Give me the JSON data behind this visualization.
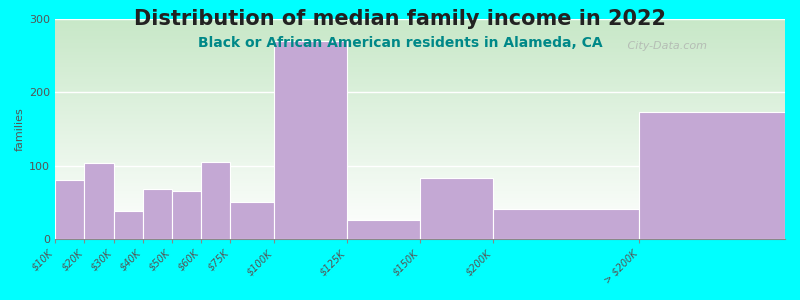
{
  "title": "Distribution of median family income in 2022",
  "subtitle": "Black or African American residents in Alameda, CA",
  "ylabel": "families",
  "background_color": "#00FFFF",
  "bar_color": "#C4A8D4",
  "categories": [
    "$10K",
    "$20K",
    "$30K",
    "$40K",
    "$50K",
    "$60K",
    "$75K",
    "$100K",
    "$125K",
    "$150K",
    "$200K",
    "> $200K"
  ],
  "values": [
    80,
    103,
    38,
    68,
    65,
    105,
    50,
    270,
    25,
    83,
    40,
    173
  ],
  "edges": [
    0,
    10,
    20,
    30,
    40,
    50,
    60,
    75,
    100,
    125,
    150,
    200,
    250
  ],
  "ylim": [
    0,
    300
  ],
  "yticks": [
    0,
    100,
    200,
    300
  ],
  "watermark": " City-Data.com",
  "title_fontsize": 15,
  "subtitle_fontsize": 10,
  "ylabel_fontsize": 8,
  "tick_fontsize": 7
}
